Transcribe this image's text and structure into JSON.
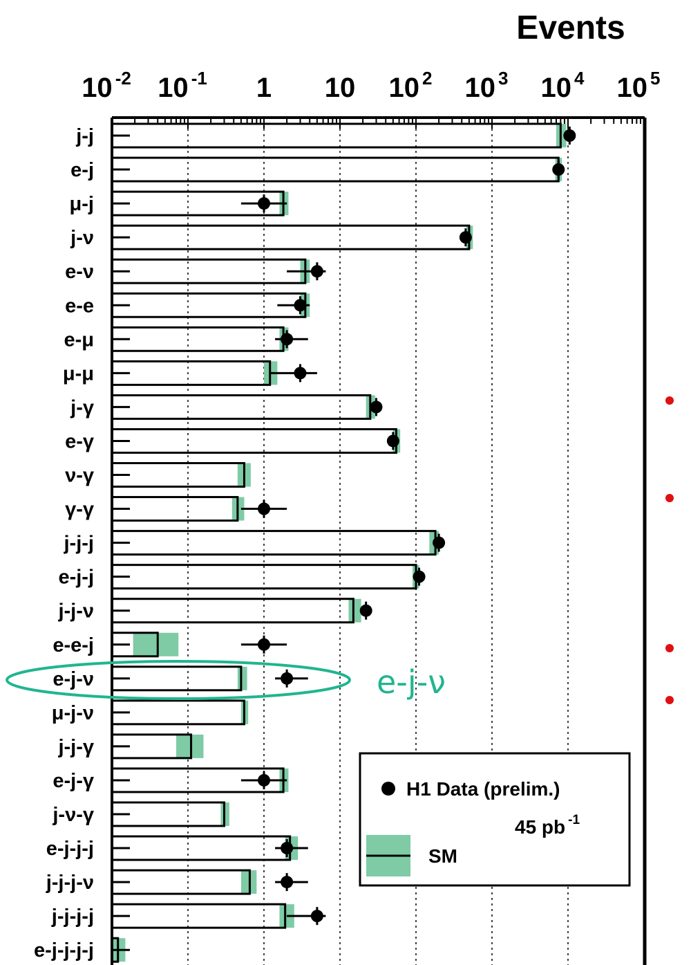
{
  "chart_data": {
    "type": "bar",
    "orientation": "horizontal",
    "x_scale": "log",
    "xlim": [
      0.01,
      100000
    ],
    "xlabel": "Events",
    "x_ticks": [
      {
        "base": "10",
        "exp": "-2"
      },
      {
        "base": "10",
        "exp": "-1"
      },
      {
        "base": "1",
        "exp": ""
      },
      {
        "base": "10",
        "exp": ""
      },
      {
        "base": "10",
        "exp": "2"
      },
      {
        "base": "10",
        "exp": "3"
      },
      {
        "base": "10",
        "exp": "4"
      },
      {
        "base": "10",
        "exp": "5"
      }
    ],
    "grid": "vertical dotted at each decade",
    "colors": {
      "sm_band": "#7ecba6",
      "data": "#000000",
      "annotation": "#20b58f",
      "bullet": "#e01010"
    },
    "categories": [
      "j-j",
      "e-j",
      "μ-j",
      "j-ν",
      "e-ν",
      "e-e",
      "e-μ",
      "μ-μ",
      "j-γ",
      "e-γ",
      "ν-γ",
      "γ-γ",
      "j-j-j",
      "e-j-j",
      "j-j-ν",
      "e-e-j",
      "e-j-ν",
      "μ-j-ν",
      "j-j-γ",
      "e-j-γ",
      "j-ν-γ",
      "e-j-j-j",
      "j-j-j-ν",
      "j-j-j-j",
      "e-j-j-j-j"
    ],
    "series": [
      {
        "name": "SM",
        "values": [
          8000,
          7500,
          1.8,
          500,
          3.5,
          3.5,
          1.8,
          1.2,
          25,
          55,
          0.55,
          0.45,
          180,
          100,
          15,
          0.04,
          0.5,
          0.55,
          0.11,
          1.8,
          0.3,
          2.2,
          0.65,
          1.9,
          0.012
        ],
        "band_low": [
          7000,
          6800,
          1.6,
          460,
          3.0,
          3.0,
          1.6,
          1.0,
          22,
          50,
          0.45,
          0.38,
          150,
          90,
          13,
          0.019,
          0.45,
          0.5,
          0.07,
          1.6,
          0.27,
          1.9,
          0.5,
          1.6,
          0.01
        ],
        "band_high": [
          9500,
          8300,
          2.1,
          560,
          4.0,
          4.0,
          2.1,
          1.5,
          29,
          62,
          0.67,
          0.55,
          200,
          110,
          19,
          0.075,
          0.6,
          0.62,
          0.16,
          2.1,
          0.35,
          2.8,
          0.8,
          2.5,
          0.015
        ]
      },
      {
        "name": "H1 Data (prelim.)",
        "values": [
          10500,
          7500,
          1,
          450,
          5,
          3,
          2,
          3,
          30,
          50,
          0,
          1,
          200,
          110,
          22,
          1,
          2,
          0,
          0,
          1,
          0,
          2,
          2,
          5,
          0
        ],
        "err_low": [
          1.0,
          1.0,
          0.5,
          1.0,
          3.0,
          1.5,
          0.6,
          1.8,
          1.0,
          1.0,
          0,
          0.5,
          1.0,
          1.0,
          1.0,
          0.5,
          0.6,
          0,
          0,
          0.5,
          0,
          0.6,
          0.6,
          3.0,
          0
        ],
        "err_high": [
          1.0,
          1.0,
          1.0,
          1.0,
          1.5,
          1.0,
          1.8,
          2.0,
          1.0,
          1.0,
          0,
          1.0,
          1.0,
          1.0,
          1.0,
          1.0,
          1.8,
          0,
          0,
          1.0,
          0,
          1.8,
          1.8,
          1.5,
          0
        ]
      }
    ],
    "legend": {
      "placement": "lower-right",
      "data_label": "H1 Data (prelim.)",
      "lumi_value": "45 pb",
      "lumi_exp": "-1",
      "sm_label": "SM"
    },
    "highlight": {
      "category": "e-j-ν",
      "label": "e-j-ν"
    }
  }
}
